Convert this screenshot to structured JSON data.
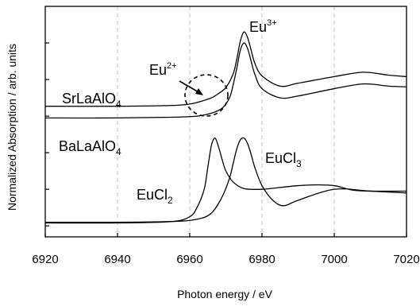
{
  "chart_data": {
    "type": "line",
    "title": "",
    "xlabel": "Photon energy / eV",
    "ylabel": "Normalized Absorption / arb. units",
    "xlim": [
      6920,
      7020
    ],
    "x_ticks": [
      6920,
      6940,
      6960,
      6980,
      7000,
      7020
    ],
    "x_tick_labels": [
      "6920",
      "6940",
      "6960",
      "6980",
      "7000",
      "7020"
    ],
    "grid": "vertical dashed",
    "legend": "none (direct labels)",
    "series": [
      {
        "name": "SrLaAlO4",
        "label": {
          "base": "SrLaAlO",
          "sub": "4"
        },
        "x": [
          6920,
          6940,
          6955,
          6960,
          6963,
          6966,
          6968,
          6970,
          6972,
          6973,
          6974,
          6975,
          6976,
          6977,
          6978,
          6980,
          6985,
          6990,
          7000,
          7008,
          7015,
          7020
        ],
        "y": [
          3.27,
          3.27,
          3.29,
          3.33,
          3.4,
          3.5,
          3.62,
          3.78,
          4.15,
          4.55,
          5.05,
          5.3,
          5.15,
          4.8,
          4.45,
          4.1,
          3.82,
          3.9,
          4.08,
          4.2,
          4.12,
          4.08
        ]
      },
      {
        "name": "BaLaAlO4",
        "label": {
          "base": "BaLaAlO",
          "sub": "4"
        },
        "x": [
          6920,
          6940,
          6955,
          6962,
          6966,
          6969,
          6971,
          6972,
          6973,
          6974,
          6975,
          6976,
          6977,
          6978,
          6980,
          6985,
          6990,
          7000,
          7008,
          7015,
          7020
        ],
        "y": [
          2.95,
          2.95,
          2.97,
          3.0,
          3.08,
          3.22,
          3.5,
          3.85,
          4.3,
          4.8,
          5.0,
          4.85,
          4.5,
          4.15,
          3.75,
          3.5,
          3.55,
          3.75,
          3.88,
          3.82,
          3.8
        ]
      },
      {
        "name": "EuCl2",
        "label": {
          "base": "EuCl",
          "sub": "2"
        },
        "x": [
          6920,
          6940,
          6955,
          6960,
          6962,
          6964,
          6965,
          6966,
          6967,
          6968,
          6969,
          6970,
          6972,
          6975,
          6980,
          6985,
          6990,
          6995,
          7000,
          7005,
          7010,
          7020
        ],
        "y": [
          0.08,
          0.08,
          0.12,
          0.25,
          0.5,
          1.0,
          1.6,
          2.2,
          2.4,
          2.15,
          1.8,
          1.5,
          1.2,
          1.02,
          1.0,
          1.05,
          1.1,
          1.12,
          1.1,
          0.98,
          0.95,
          0.95
        ]
      },
      {
        "name": "EuCl3",
        "label": {
          "base": "EuCl",
          "sub": "3"
        },
        "x": [
          6920,
          6940,
          6955,
          6962,
          6966,
          6969,
          6971,
          6972,
          6973,
          6974,
          6975,
          6976,
          6977,
          6978,
          6980,
          6983,
          6986,
          6990,
          7000,
          7010,
          7020
        ],
        "y": [
          0.1,
          0.1,
          0.12,
          0.18,
          0.35,
          0.8,
          1.3,
          1.7,
          2.1,
          2.35,
          2.4,
          2.25,
          1.95,
          1.6,
          1.1,
          0.7,
          0.55,
          0.7,
          1.0,
          0.95,
          0.9
        ]
      }
    ],
    "annotations": [
      {
        "base": "Eu",
        "sup": "3+"
      },
      {
        "base": "Eu",
        "sup": "2+"
      }
    ]
  }
}
